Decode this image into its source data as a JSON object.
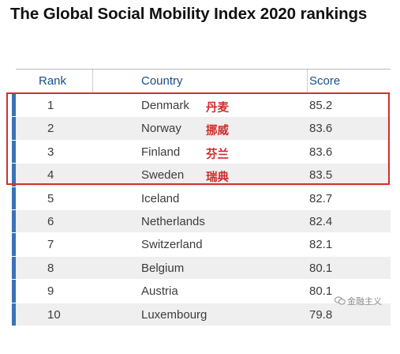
{
  "title": "The Global Social Mobility Index 2020 rankings",
  "table": {
    "headers": {
      "rank": "Rank",
      "country": "Country",
      "score": "Score"
    },
    "rows": [
      {
        "rank": "1",
        "country": "Denmark",
        "cn": "丹麦",
        "score": "85.2"
      },
      {
        "rank": "2",
        "country": "Norway",
        "cn": "挪威",
        "score": "83.6"
      },
      {
        "rank": "3",
        "country": "Finland",
        "cn": "芬兰",
        "score": "83.6"
      },
      {
        "rank": "4",
        "country": "Sweden",
        "cn": "瑞典",
        "score": "83.5"
      },
      {
        "rank": "5",
        "country": "Iceland",
        "cn": "",
        "score": "82.7"
      },
      {
        "rank": "6",
        "country": "Netherlands",
        "cn": "",
        "score": "82.4"
      },
      {
        "rank": "7",
        "country": "Switzerland",
        "cn": "",
        "score": "82.1"
      },
      {
        "rank": "8",
        "country": "Belgium",
        "cn": "",
        "score": "80.1"
      },
      {
        "rank": "9",
        "country": "Austria",
        "cn": "",
        "score": "80.1"
      },
      {
        "rank": "10",
        "country": "Luxembourg",
        "cn": "",
        "score": "79.8"
      }
    ]
  },
  "watermark": {
    "text": "金融主义",
    "icon": "wechat-icon"
  },
  "colors": {
    "header_text": "#1a4f86",
    "row_bar": "#3a73b5",
    "highlight": "#d03030",
    "cn_label": "#d22b2b"
  }
}
